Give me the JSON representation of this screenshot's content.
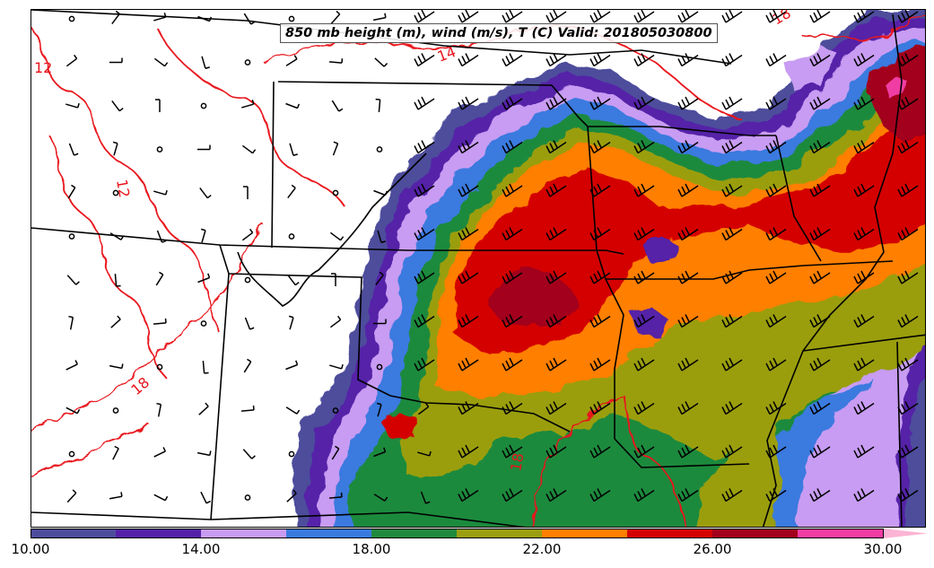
{
  "title": "850 mb height (m), wind (m/s), T (C) Valid: 201805030800",
  "colorbar": {
    "min": 10.0,
    "max": 30.0,
    "bins": [
      {
        "from": 10,
        "to": 12,
        "color": "#4e4d9c"
      },
      {
        "from": 12,
        "to": 14,
        "color": "#5520a8"
      },
      {
        "from": 14,
        "to": 16,
        "color": "#c89cf2"
      },
      {
        "from": 16,
        "to": 18,
        "color": "#3a7adf"
      },
      {
        "from": 18,
        "to": 20,
        "color": "#1f8a3e"
      },
      {
        "from": 20,
        "to": 22,
        "color": "#9a9e10"
      },
      {
        "from": 22,
        "to": 24,
        "color": "#ff7f00"
      },
      {
        "from": 24,
        "to": 26,
        "color": "#d40202"
      },
      {
        "from": 26,
        "to": 28,
        "color": "#a2001c"
      },
      {
        "from": 28,
        "to": 30,
        "color": "#f03ca3"
      }
    ],
    "extend_color": "#fcb4d4",
    "tick_labels": [
      "10.00",
      "14.00",
      "18.00",
      "22.00",
      "26.00",
      "30.00"
    ],
    "tick_values": [
      10,
      14,
      18,
      22,
      26,
      30
    ]
  },
  "temperature_contour_labels": [
    "12",
    "12",
    "14",
    "18",
    "18",
    "18"
  ],
  "colors": {
    "temperature_contour": "#e8141b",
    "state_border": "#000000",
    "wind_barb": "#000000"
  }
}
